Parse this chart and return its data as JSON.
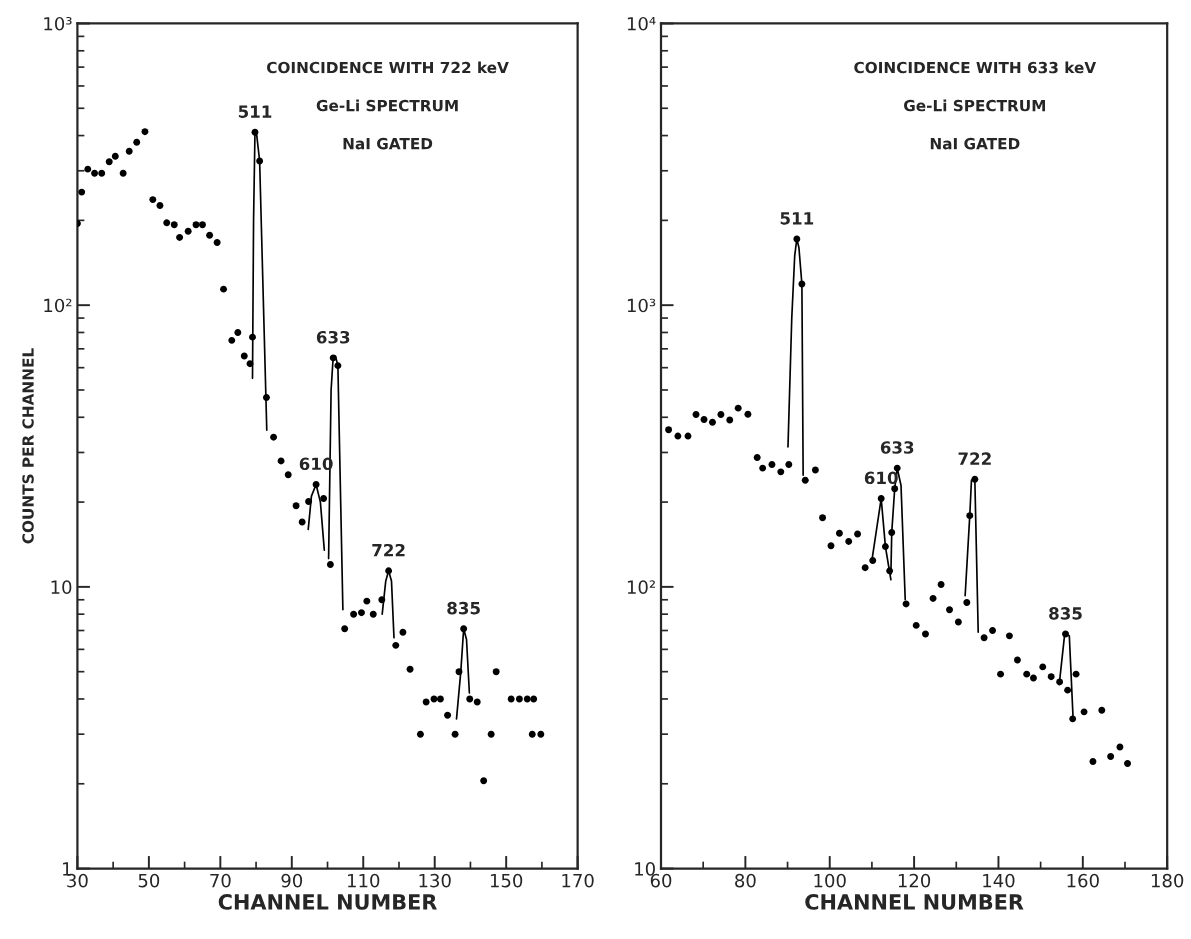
{
  "chart_data": [
    {
      "type": "scatter",
      "xlabel": "CHANNEL NUMBER",
      "ylabel": "COUNTS PER CHANNEL",
      "log": "y",
      "grid": false,
      "marker": "circle",
      "xlim": [
        30,
        170
      ],
      "xticks": [
        30,
        {
          "value": 40,
          "label": null
        },
        50,
        {
          "value": 60,
          "label": null
        },
        70,
        {
          "value": 80,
          "label": null
        },
        90,
        {
          "value": 100,
          "label": null
        },
        110,
        {
          "value": 120,
          "label": null
        },
        130,
        {
          "value": 140,
          "label": null
        },
        150,
        {
          "value": 160,
          "label": null
        },
        170
      ],
      "ylim": [
        1,
        1000
      ],
      "yticks": [
        1,
        10,
        {
          "value": 100,
          "label": "10²"
        },
        {
          "value": 1000,
          "label": "10³"
        }
      ],
      "annotations": [
        "COINCIDENCE WITH 722 keV",
        "Ge-Li SPECTRUM",
        "NaI GATED",
        {
          "text": "511",
          "x": 79.7,
          "y": 411
        },
        {
          "text": "633",
          "x": 101.6,
          "y": 65
        },
        {
          "text": "610",
          "x": 96.8,
          "y": 23.1
        },
        {
          "text": "722",
          "x": 117.1,
          "y": 11.4
        },
        {
          "text": "835",
          "x": 138.1,
          "y": 7.1
        }
      ],
      "series": [
        {
          "color": "#000000",
          "x": [
            30,
            31.2,
            32.9,
            34.8,
            36.8,
            38.9,
            40.6,
            42.8,
            44.5,
            46.6,
            48.9,
            51.1,
            53.1,
            55.0,
            57.1,
            58.6,
            61.0,
            63.2,
            65.0,
            67.0,
            69.1,
            70.9,
            73.2,
            74.9,
            76.7,
            78.3,
            79.0,
            79.7,
            81.0,
            82.9,
            84.9,
            87.0,
            89.0,
            91.2,
            92.9,
            94.7,
            96.8,
            98.9,
            100.8,
            101.6,
            102.9,
            104.8,
            107.3,
            109.5,
            111.0,
            112.8,
            115.2,
            117.1,
            119.1,
            121.1,
            123.1,
            126.0,
            127.6,
            129.8,
            131.6,
            133.6,
            135.7,
            136.8,
            138.1,
            139.8,
            141.9,
            143.7,
            145.8,
            147.2,
            151.4,
            153.7,
            155.9,
            157.3,
            157.7,
            159.7
          ],
          "values": [
            195,
            252,
            304,
            294,
            294,
            323,
            338,
            294,
            352,
            379,
            413,
            237,
            226,
            196,
            193,
            174,
            183,
            193,
            193,
            177,
            167,
            114,
            75,
            80,
            66,
            62,
            77,
            411,
            325,
            47,
            34,
            28,
            25,
            19.4,
            17.0,
            20.1,
            23.1,
            20.6,
            12.0,
            65,
            61,
            7.1,
            8.0,
            8.1,
            8.9,
            8.0,
            9.0,
            11.4,
            6.2,
            6.9,
            5.1,
            3.0,
            3.9,
            4.0,
            4.0,
            3.5,
            3.0,
            5.0,
            7.1,
            4.0,
            3.9,
            2.05,
            3.0,
            5.0,
            4.0,
            4.0,
            4.0,
            3.0,
            4.0,
            3.0
          ]
        },
        {
          "type": "line",
          "marker": "none",
          "color": "#000000",
          "x": [
            79.0,
            79.3,
            79.7,
            80.2,
            81.0,
            83.0
          ],
          "values": [
            55,
            200,
            415,
            400,
            325,
            36
          ]
        },
        {
          "type": "line",
          "marker": "none",
          "color": "#000000",
          "x": [
            94.6,
            95.5,
            96.8,
            98.0,
            99.1
          ],
          "values": [
            16,
            21,
            23.1,
            20,
            13.5
          ]
        },
        {
          "type": "line",
          "marker": "none",
          "color": "#000000",
          "x": [
            100.3,
            101.0,
            101.6,
            102.2,
            102.9,
            104.3
          ],
          "values": [
            12.6,
            50,
            66,
            66,
            61,
            8.3
          ]
        },
        {
          "type": "line",
          "marker": "none",
          "color": "#000000",
          "x": [
            115.3,
            116.3,
            117.1,
            117.9,
            118.6
          ],
          "values": [
            8.0,
            10.5,
            11.4,
            10.5,
            6.6
          ]
        },
        {
          "type": "line",
          "marker": "none",
          "color": "#000000",
          "x": [
            136.1,
            137.3,
            138.1,
            138.9,
            139.7
          ],
          "values": [
            3.4,
            5.0,
            7.1,
            6.5,
            4.2
          ]
        }
      ]
    },
    {
      "type": "scatter",
      "xlabel": "CHANNEL NUMBER",
      "log": "y",
      "grid": false,
      "marker": "circle",
      "xlim": [
        60,
        180
      ],
      "xticks": [
        60,
        {
          "value": 70,
          "label": null
        },
        80,
        {
          "value": 90,
          "label": null
        },
        100,
        {
          "value": 110,
          "label": null
        },
        120,
        {
          "value": 130,
          "label": null
        },
        140,
        {
          "value": 150,
          "label": null
        },
        160,
        {
          "value": 170,
          "label": null
        },
        180
      ],
      "ylim": [
        10,
        10000
      ],
      "yticks": [
        10,
        {
          "value": 100,
          "label": "10²"
        },
        {
          "value": 1000,
          "label": "10³"
        },
        {
          "value": 10000,
          "label": "10⁴"
        }
      ],
      "annotations": [
        "COINCIDENCE WITH 633 keV",
        "Ge-Li SPECTRUM",
        "NaI GATED",
        {
          "text": "511",
          "x": 92.2,
          "y": 1718
        },
        {
          "text": "610",
          "x": 112.2,
          "y": 206
        },
        {
          "text": "633",
          "x": 116.0,
          "y": 264
        },
        {
          "text": "722",
          "x": 134.4,
          "y": 241
        },
        {
          "text": "835",
          "x": 155.9,
          "y": 68
        }
      ],
      "series": [
        {
          "color": "#000000",
          "x": [
            61.8,
            64.0,
            66.4,
            68.3,
            70.2,
            72.2,
            74.2,
            76.3,
            78.3,
            80.6,
            82.8,
            84.1,
            86.3,
            88.4,
            90.3,
            92.2,
            93.4,
            94.2,
            96.6,
            98.3,
            100.3,
            102.3,
            104.5,
            106.6,
            108.4,
            110.2,
            112.2,
            113.2,
            114.2,
            114.7,
            115.4,
            116.0,
            118.1,
            120.5,
            122.7,
            124.5,
            126.4,
            128.4,
            130.5,
            132.5,
            133.2,
            134.4,
            136.6,
            138.6,
            140.5,
            142.6,
            144.5,
            146.7,
            148.3,
            150.5,
            152.5,
            154.5,
            155.9,
            156.4,
            157.6,
            158.4,
            160.3,
            162.4,
            164.5,
            166.6,
            168.8,
            170.6
          ],
          "values": [
            361,
            343,
            343,
            409,
            393,
            384,
            409,
            391,
            431,
            410,
            288,
            264,
            272,
            256,
            272,
            1718,
            1189,
            239,
            260,
            176,
            140,
            155,
            145,
            154,
            117,
            124,
            206,
            139,
            114,
            156,
            223,
            264,
            87,
            73,
            68,
            91,
            102,
            83,
            75,
            88,
            179,
            241,
            66,
            70,
            49,
            67,
            55,
            49,
            47.5,
            52,
            48,
            46,
            68,
            43,
            34,
            49,
            36,
            24,
            36.5,
            25,
            27,
            23.6
          ]
        },
        {
          "type": "line",
          "marker": "none",
          "color": "#000000",
          "x": [
            90.1,
            91.0,
            91.7,
            92.2,
            92.7,
            93.4,
            93.7
          ],
          "values": [
            314,
            900,
            1500,
            1718,
            1600,
            1189,
            249
          ]
        },
        {
          "type": "line",
          "marker": "none",
          "color": "#000000",
          "x": [
            110.1,
            112.2,
            113.2,
            114.5
          ],
          "values": [
            127,
            206,
            139,
            106
          ]
        },
        {
          "type": "line",
          "marker": "none",
          "color": "#000000",
          "x": [
            114.5,
            114.7,
            115.4,
            116.0,
            116.9,
            117.9
          ],
          "values": [
            111,
            156,
            223,
            264,
            229,
            90
          ]
        },
        {
          "type": "line",
          "marker": "none",
          "color": "#000000",
          "x": [
            132.1,
            133.2,
            133.6,
            134.4,
            135.2
          ],
          "values": [
            93,
            179,
            239,
            241,
            69
          ]
        },
        {
          "type": "line",
          "marker": "none",
          "color": "#000000",
          "x": [
            154.4,
            155.7,
            156.8,
            157.7
          ],
          "values": [
            45,
            68,
            67,
            34
          ]
        }
      ]
    }
  ]
}
